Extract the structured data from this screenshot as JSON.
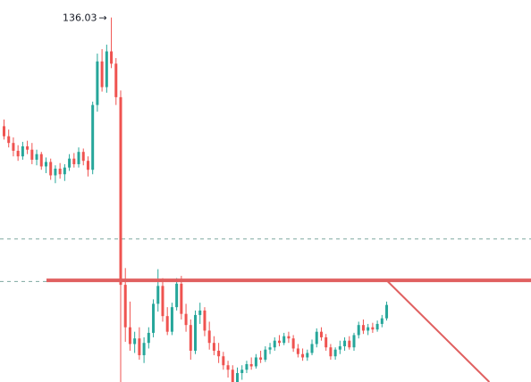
{
  "chart_data": {
    "type": "candlestick",
    "title": "",
    "xlabel": "",
    "ylabel": "",
    "ylim": [
      103.4,
      136.8
    ],
    "grid": false,
    "colors": {
      "up": "#26a69a",
      "down": "#ef5350",
      "resistance_line": "#e06060",
      "dashed_line": "#7fa8a0",
      "label": "#131722"
    },
    "high_marker": {
      "value": 136.03,
      "text": "136.03",
      "arrow": "→"
    },
    "annotations": {
      "resistance_level": 112.5,
      "dashed_levels": [
        116.2,
        112.4
      ],
      "projection": {
        "from_index": 82,
        "from_price": 112.5,
        "to_index": 104,
        "to_price": 103.4
      }
    },
    "ohlc": [
      [
        126.3,
        126.9,
        125.1,
        125.4
      ],
      [
        125.4,
        126.0,
        124.4,
        124.8
      ],
      [
        124.8,
        125.3,
        123.6,
        124.1
      ],
      [
        124.1,
        124.6,
        123.2,
        123.6
      ],
      [
        123.6,
        124.9,
        123.3,
        124.5
      ],
      [
        124.5,
        125.0,
        123.8,
        124.2
      ],
      [
        124.2,
        124.8,
        122.9,
        123.3
      ],
      [
        123.3,
        124.2,
        122.8,
        123.8
      ],
      [
        123.8,
        124.0,
        122.4,
        122.7
      ],
      [
        122.7,
        123.5,
        122.1,
        123.1
      ],
      [
        123.1,
        123.4,
        121.5,
        121.9
      ],
      [
        121.9,
        122.8,
        121.2,
        122.5
      ],
      [
        122.5,
        123.0,
        121.6,
        122.0
      ],
      [
        122.0,
        122.9,
        121.4,
        122.6
      ],
      [
        122.6,
        123.8,
        122.3,
        123.4
      ],
      [
        123.4,
        123.9,
        122.6,
        122.9
      ],
      [
        122.9,
        124.4,
        122.6,
        124.0
      ],
      [
        124.0,
        124.3,
        122.8,
        123.2
      ],
      [
        123.2,
        123.6,
        121.8,
        122.4
      ],
      [
        122.4,
        128.5,
        122.0,
        128.2
      ],
      [
        128.2,
        132.8,
        127.6,
        132.1
      ],
      [
        132.1,
        133.2,
        129.4,
        129.8
      ],
      [
        129.8,
        133.6,
        129.3,
        133.0
      ],
      [
        133.0,
        136.03,
        131.5,
        131.9
      ],
      [
        131.9,
        132.4,
        128.2,
        128.9
      ],
      [
        128.9,
        129.5,
        103.3,
        112.1
      ],
      [
        112.1,
        113.6,
        107.0,
        108.3
      ],
      [
        108.3,
        110.6,
        106.2,
        106.8
      ],
      [
        106.8,
        107.9,
        106.0,
        107.3
      ],
      [
        107.3,
        108.3,
        105.4,
        105.8
      ],
      [
        105.8,
        107.4,
        105.1,
        106.9
      ],
      [
        106.9,
        108.3,
        106.4,
        107.8
      ],
      [
        107.8,
        110.8,
        107.4,
        110.4
      ],
      [
        110.4,
        113.5,
        109.7,
        112.0
      ],
      [
        112.0,
        112.7,
        108.8,
        109.3
      ],
      [
        109.3,
        110.1,
        107.6,
        107.9
      ],
      [
        107.9,
        110.5,
        107.6,
        110.1
      ],
      [
        110.1,
        112.7,
        109.8,
        112.2
      ],
      [
        112.2,
        112.9,
        109.0,
        109.5
      ],
      [
        109.5,
        110.4,
        107.9,
        108.5
      ],
      [
        108.5,
        109.0,
        105.4,
        106.2
      ],
      [
        106.2,
        109.8,
        105.9,
        109.4
      ],
      [
        109.4,
        110.5,
        108.6,
        109.8
      ],
      [
        109.8,
        110.1,
        107.5,
        108.0
      ],
      [
        108.0,
        108.8,
        106.3,
        106.9
      ],
      [
        106.9,
        107.5,
        105.8,
        106.2
      ],
      [
        106.2,
        106.9,
        105.1,
        105.7
      ],
      [
        105.7,
        106.1,
        104.5,
        104.9
      ],
      [
        104.9,
        105.3,
        103.8,
        104.5
      ],
      [
        104.5,
        104.9,
        102.9,
        103.4
      ],
      [
        103.4,
        104.7,
        103.1,
        104.2
      ],
      [
        104.2,
        104.9,
        103.6,
        104.5
      ],
      [
        104.5,
        105.3,
        104.2,
        105.0
      ],
      [
        105.0,
        105.6,
        104.5,
        104.8
      ],
      [
        104.8,
        105.9,
        104.6,
        105.6
      ],
      [
        105.6,
        106.2,
        105.1,
        105.4
      ],
      [
        105.4,
        106.6,
        105.2,
        106.3
      ],
      [
        106.3,
        106.9,
        105.9,
        106.5
      ],
      [
        106.5,
        107.4,
        106.2,
        107.1
      ],
      [
        107.1,
        107.6,
        106.6,
        106.9
      ],
      [
        106.9,
        107.8,
        106.7,
        107.5
      ],
      [
        107.5,
        107.9,
        106.9,
        107.3
      ],
      [
        107.3,
        107.6,
        106.1,
        106.4
      ],
      [
        106.4,
        106.8,
        105.6,
        105.9
      ],
      [
        105.9,
        106.4,
        105.3,
        105.6
      ],
      [
        105.6,
        106.3,
        105.3,
        106.0
      ],
      [
        106.0,
        107.2,
        105.8,
        106.8
      ],
      [
        106.8,
        108.2,
        106.5,
        107.9
      ],
      [
        107.9,
        108.3,
        107.1,
        107.4
      ],
      [
        107.4,
        107.7,
        106.2,
        106.5
      ],
      [
        106.5,
        106.8,
        105.4,
        105.7
      ],
      [
        105.7,
        106.5,
        105.4,
        106.3
      ],
      [
        106.3,
        107.1,
        105.9,
        106.6
      ],
      [
        106.6,
        107.4,
        106.2,
        107.1
      ],
      [
        107.1,
        107.5,
        106.3,
        106.5
      ],
      [
        106.5,
        107.8,
        106.2,
        107.6
      ],
      [
        107.6,
        108.8,
        107.3,
        108.5
      ],
      [
        108.5,
        109.0,
        107.7,
        108.0
      ],
      [
        108.0,
        108.6,
        107.6,
        108.3
      ],
      [
        108.3,
        108.7,
        107.8,
        108.1
      ],
      [
        108.1,
        108.9,
        107.9,
        108.6
      ],
      [
        108.6,
        109.4,
        108.3,
        109.1
      ],
      [
        109.1,
        110.6,
        108.9,
        110.3
      ]
    ]
  }
}
